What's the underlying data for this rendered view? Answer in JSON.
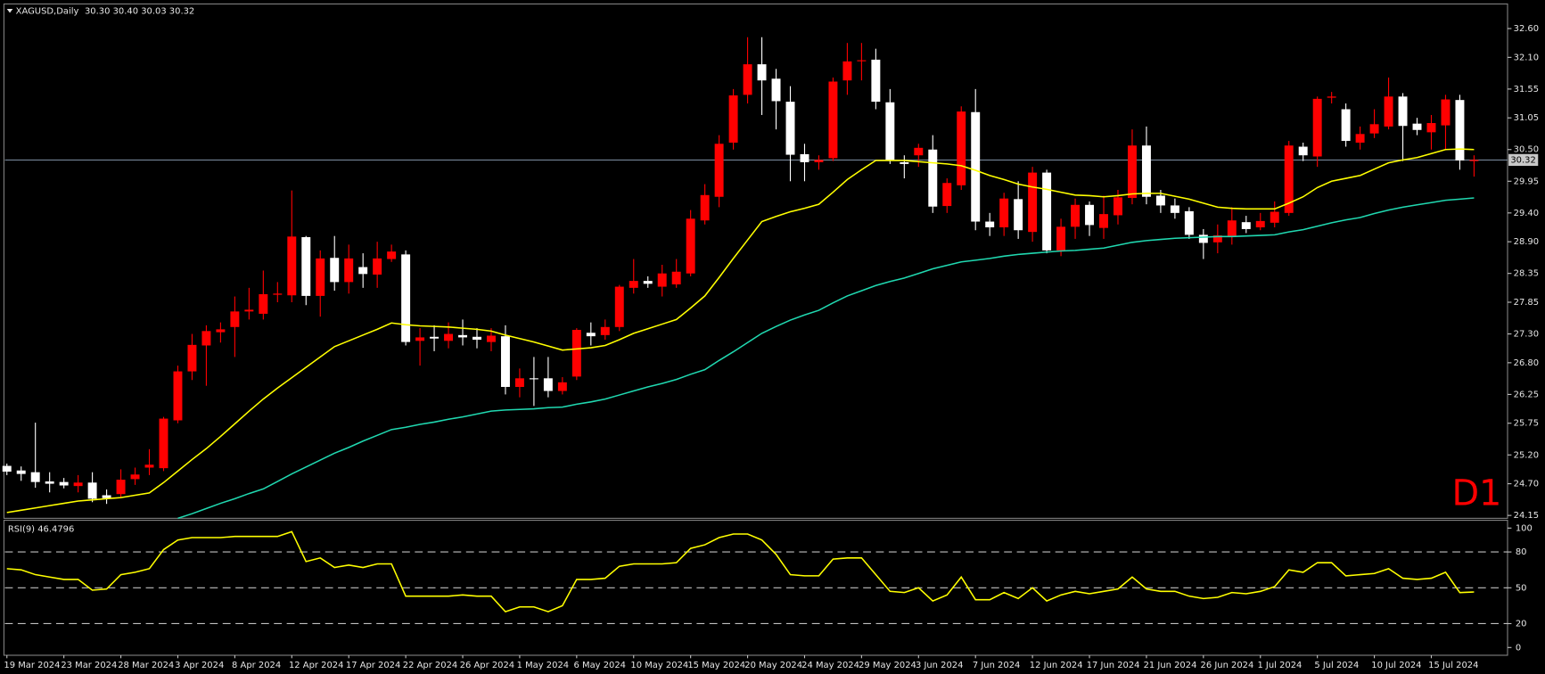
{
  "chart_data": [
    {
      "type": "candlestick",
      "title": "XAGUSD,Daily",
      "subtitle": "30.30 30.40 30.03 30.32",
      "annotation": "D1",
      "up_color": "#ff0000",
      "down_color": "#ffffff",
      "categories": [
        "19 Mar 2024",
        null,
        null,
        null,
        "23 Mar 2024",
        null,
        null,
        null,
        "28 Mar 2024",
        null,
        null,
        null,
        "3 Apr 2024",
        null,
        null,
        null,
        "8 Apr 2024",
        null,
        null,
        null,
        "12 Apr 2024",
        null,
        null,
        null,
        "17 Apr 2024",
        null,
        null,
        null,
        "22 Apr 2024",
        null,
        null,
        null,
        "26 Apr 2024",
        null,
        null,
        null,
        "1 May 2024",
        null,
        null,
        null,
        "6 May 2024",
        null,
        null,
        null,
        "10 May 2024",
        null,
        null,
        null,
        "15 May 2024",
        null,
        null,
        null,
        "20 May 2024",
        null,
        null,
        null,
        "24 May 2024",
        null,
        null,
        null,
        "29 May 2024",
        null,
        null,
        null,
        "3 Jun 2024",
        null,
        null,
        null,
        "7 Jun 2024",
        null,
        null,
        null,
        "12 Jun 2024",
        null,
        null,
        null,
        "17 Jun 2024",
        null,
        null,
        null,
        "21 Jun 2024",
        null,
        null,
        null,
        "26 Jun 2024",
        null,
        null,
        null,
        "1 Jul 2024",
        null,
        null,
        null,
        "5 Jul 2024",
        null,
        null,
        null,
        "10 Jul 2024",
        null,
        null,
        null,
        "15 Jul 2024",
        null,
        null,
        null
      ],
      "open": [
        25.01,
        24.93,
        24.9,
        24.74,
        24.73,
        24.66,
        24.72,
        24.5,
        24.52,
        24.78,
        24.98,
        24.97,
        25.8,
        26.65,
        27.1,
        27.33,
        27.42,
        27.69,
        27.65,
        27.98,
        27.97,
        28.98,
        27.96,
        28.62,
        28.2,
        28.46,
        28.33,
        28.6,
        28.68,
        27.18,
        27.25,
        27.18,
        27.28,
        27.25,
        27.16,
        27.26,
        26.38,
        26.53,
        26.53,
        26.31,
        26.56,
        27.32,
        27.28,
        27.42,
        28.1,
        28.22,
        28.12,
        28.16,
        28.35,
        29.27,
        29.68,
        30.62,
        31.45,
        31.98,
        31.73,
        31.33,
        30.42,
        30.28,
        30.35,
        31.7,
        32.04,
        32.06,
        31.32,
        30.28,
        30.4,
        30.5,
        29.52,
        29.88,
        31.15,
        29.25,
        29.15,
        29.64,
        29.07,
        30.1,
        28.75,
        29.16,
        29.54,
        29.14,
        29.36,
        29.66,
        30.57,
        29.7,
        29.53,
        29.43,
        29.02,
        28.89,
        29.0,
        29.24,
        29.15,
        29.23,
        29.4,
        30.55,
        30.38,
        31.4,
        31.2,
        30.62,
        30.78,
        30.9,
        31.42,
        30.95,
        30.8,
        30.92,
        31.36,
        30.3
      ],
      "high": [
        25.05,
        25.0,
        25.76,
        24.9,
        24.8,
        24.85,
        24.9,
        24.6,
        24.95,
        24.98,
        25.3,
        25.86,
        26.75,
        27.3,
        27.45,
        27.5,
        27.95,
        28.1,
        28.4,
        28.2,
        29.79,
        29.0,
        28.75,
        29.0,
        28.85,
        28.7,
        28.9,
        28.85,
        28.75,
        27.4,
        27.45,
        27.5,
        27.55,
        27.4,
        27.4,
        27.45,
        26.7,
        26.9,
        26.9,
        26.55,
        27.4,
        27.5,
        27.55,
        28.15,
        28.6,
        28.3,
        28.5,
        28.6,
        29.45,
        29.9,
        30.75,
        31.55,
        32.45,
        32.45,
        31.9,
        31.6,
        30.6,
        30.4,
        31.75,
        32.35,
        32.35,
        32.25,
        31.55,
        30.4,
        30.6,
        30.75,
        30.0,
        31.25,
        31.55,
        29.4,
        29.75,
        29.95,
        30.2,
        30.15,
        29.3,
        29.65,
        29.6,
        29.7,
        29.8,
        30.85,
        30.9,
        29.8,
        29.65,
        29.5,
        29.12,
        29.2,
        29.5,
        29.35,
        29.4,
        29.6,
        30.65,
        30.62,
        31.42,
        31.5,
        31.3,
        30.9,
        31.2,
        31.75,
        31.48,
        31.05,
        31.1,
        31.45,
        31.45,
        30.4
      ],
      "low": [
        24.85,
        24.75,
        24.63,
        24.55,
        24.62,
        24.55,
        24.38,
        24.35,
        24.45,
        24.68,
        24.85,
        24.92,
        25.75,
        26.5,
        26.4,
        27.15,
        26.9,
        27.55,
        27.55,
        27.85,
        27.85,
        27.8,
        27.6,
        28.05,
        28.0,
        28.1,
        28.1,
        28.55,
        27.1,
        26.75,
        27.0,
        27.05,
        27.1,
        27.05,
        27.0,
        26.25,
        26.2,
        26.05,
        26.2,
        26.25,
        26.5,
        27.1,
        27.2,
        27.35,
        28.0,
        28.1,
        27.95,
        28.1,
        28.3,
        29.2,
        29.5,
        30.5,
        31.3,
        31.1,
        30.85,
        29.95,
        29.95,
        30.15,
        30.3,
        31.45,
        31.7,
        31.2,
        30.25,
        30.0,
        30.2,
        29.4,
        29.4,
        29.8,
        29.1,
        29.0,
        29.0,
        28.95,
        28.9,
        28.7,
        28.65,
        28.95,
        29.0,
        28.95,
        29.2,
        29.55,
        29.55,
        29.4,
        29.3,
        28.95,
        28.6,
        28.7,
        28.85,
        29.05,
        29.1,
        29.15,
        29.35,
        30.3,
        30.2,
        31.3,
        30.55,
        30.5,
        30.7,
        30.85,
        30.3,
        30.75,
        30.5,
        30.5,
        30.15,
        30.03
      ],
      "close": [
        24.91,
        24.87,
        24.73,
        24.7,
        24.67,
        24.72,
        24.44,
        24.45,
        24.77,
        24.86,
        25.03,
        25.83,
        26.65,
        27.11,
        27.35,
        27.38,
        27.69,
        27.72,
        27.99,
        28.0,
        28.99,
        27.96,
        28.61,
        28.2,
        28.61,
        28.34,
        28.61,
        28.73,
        27.16,
        27.24,
        27.22,
        27.3,
        27.24,
        27.2,
        27.27,
        26.38,
        26.53,
        26.52,
        26.31,
        26.46,
        27.37,
        27.26,
        27.42,
        28.12,
        28.22,
        28.17,
        28.35,
        28.38,
        29.3,
        29.71,
        30.6,
        31.44,
        31.98,
        31.7,
        31.34,
        30.41,
        30.28,
        30.32,
        31.68,
        32.03,
        32.05,
        31.33,
        30.31,
        30.25,
        30.53,
        29.51,
        29.92,
        31.16,
        29.25,
        29.15,
        29.65,
        29.1,
        30.1,
        28.75,
        29.16,
        29.54,
        29.19,
        29.38,
        29.67,
        30.57,
        29.68,
        29.53,
        29.4,
        29.02,
        28.88,
        29.01,
        29.27,
        29.12,
        29.26,
        29.42,
        30.57,
        30.4,
        31.38,
        31.42,
        30.65,
        30.77,
        30.94,
        31.42,
        30.91,
        30.84,
        30.96,
        31.37,
        30.31,
        30.32
      ],
      "overlays": [
        {
          "color": "#ffff00",
          "values": [
            24.2,
            24.24,
            24.28,
            24.32,
            24.36,
            24.4,
            24.42,
            24.44,
            24.46,
            24.5,
            24.54,
            24.72,
            24.92,
            25.12,
            25.31,
            25.52,
            25.74,
            25.96,
            26.17,
            26.36,
            26.54,
            26.72,
            26.9,
            27.08,
            27.18,
            27.28,
            27.38,
            27.49,
            27.46,
            27.44,
            27.43,
            27.42,
            27.4,
            27.38,
            27.35,
            27.28,
            27.22,
            27.16,
            27.09,
            27.02,
            27.04,
            27.06,
            27.1,
            27.2,
            27.31,
            27.39,
            27.47,
            27.55,
            27.75,
            27.96,
            28.28,
            28.61,
            28.93,
            29.25,
            29.34,
            29.42,
            29.48,
            29.55,
            29.76,
            29.98,
            30.15,
            30.31,
            30.31,
            30.31,
            30.29,
            30.27,
            30.25,
            30.22,
            30.14,
            30.05,
            29.98,
            29.9,
            29.85,
            29.81,
            29.76,
            29.71,
            29.7,
            29.68,
            29.7,
            29.73,
            29.74,
            29.74,
            29.69,
            29.64,
            29.57,
            29.5,
            29.48,
            29.47,
            29.47,
            29.47,
            29.57,
            29.68,
            29.84,
            29.95,
            30.0,
            30.05,
            30.16,
            30.27,
            30.32,
            30.36,
            30.43,
            30.5,
            30.51,
            30.5
          ]
        },
        {
          "color": "#20d8b0",
          "values": [
            null,
            null,
            null,
            null,
            null,
            null,
            null,
            null,
            null,
            null,
            null,
            null,
            24.1,
            24.18,
            24.27,
            24.36,
            24.44,
            24.53,
            24.61,
            24.74,
            24.87,
            24.99,
            25.11,
            25.23,
            25.33,
            25.44,
            25.54,
            25.64,
            25.68,
            25.73,
            25.77,
            25.82,
            25.86,
            25.91,
            25.96,
            25.98,
            25.99,
            26.0,
            26.02,
            26.03,
            26.08,
            26.12,
            26.17,
            26.24,
            26.31,
            26.38,
            26.44,
            26.51,
            26.6,
            26.68,
            26.84,
            26.99,
            27.15,
            27.31,
            27.43,
            27.54,
            27.63,
            27.71,
            27.84,
            27.96,
            28.05,
            28.14,
            28.21,
            28.27,
            28.35,
            28.43,
            28.49,
            28.55,
            28.58,
            28.61,
            28.65,
            28.68,
            28.7,
            28.72,
            28.74,
            28.75,
            28.77,
            28.79,
            28.84,
            28.89,
            28.92,
            28.94,
            28.96,
            28.97,
            28.98,
            28.99,
            28.99,
            29.0,
            29.01,
            29.02,
            29.07,
            29.11,
            29.17,
            29.23,
            29.28,
            29.32,
            29.39,
            29.45,
            29.5,
            29.54,
            29.58,
            29.62,
            29.64,
            29.66
          ]
        }
      ],
      "current_price": {
        "value": 30.32,
        "label": "30.32"
      },
      "ylim": [
        24.1,
        33.01
      ],
      "yticks": [
        {
          "value": 32.6,
          "label": "32.60"
        },
        {
          "value": 32.1,
          "label": "32.10"
        },
        {
          "value": 31.55,
          "label": "31.55"
        },
        {
          "value": 31.05,
          "label": "31.05"
        },
        {
          "value": 30.5,
          "label": "30.50"
        },
        {
          "value": 29.95,
          "label": "29.95"
        },
        {
          "value": 29.4,
          "label": "29.40"
        },
        {
          "value": 28.9,
          "label": "28.90"
        },
        {
          "value": 28.35,
          "label": "28.35"
        },
        {
          "value": 27.85,
          "label": "27.85"
        },
        {
          "value": 27.3,
          "label": "27.30"
        },
        {
          "value": 26.8,
          "label": "26.80"
        },
        {
          "value": 26.25,
          "label": "26.25"
        },
        {
          "value": 25.75,
          "label": "25.75"
        },
        {
          "value": 25.2,
          "label": "25.20"
        },
        {
          "value": 24.7,
          "label": "24.70"
        },
        {
          "value": 24.15,
          "label": "24.15"
        }
      ]
    },
    {
      "type": "line",
      "title": "RSI(9) 46.4796",
      "series": [
        {
          "color": "#ffff00",
          "values": [
            66,
            65,
            61,
            59,
            57,
            57,
            48,
            49,
            61,
            63,
            66,
            82,
            90,
            92,
            92,
            92,
            93,
            93,
            93,
            93,
            97,
            72,
            75,
            67,
            69,
            67,
            70,
            70,
            43,
            43,
            43,
            43,
            44,
            43,
            43,
            30,
            34,
            34,
            30,
            35,
            57,
            57,
            58,
            68,
            70,
            70,
            70,
            71,
            83,
            86,
            92,
            95,
            95,
            90,
            78,
            61,
            60,
            60,
            74,
            75,
            75,
            61,
            47,
            46,
            50,
            39,
            44,
            59,
            40,
            40,
            46,
            41,
            50,
            39,
            44,
            47,
            45,
            47,
            49,
            59,
            49,
            47,
            47,
            43,
            41,
            42,
            46,
            45,
            47,
            51,
            65,
            63,
            71,
            71,
            60,
            61,
            62,
            66,
            58,
            57,
            58,
            63,
            46,
            46.48
          ]
        }
      ],
      "ylim": [
        -6.5,
        105.7
      ],
      "yticks": [
        100,
        80,
        50,
        20,
        0
      ],
      "levels": [
        80,
        50,
        20
      ]
    }
  ]
}
